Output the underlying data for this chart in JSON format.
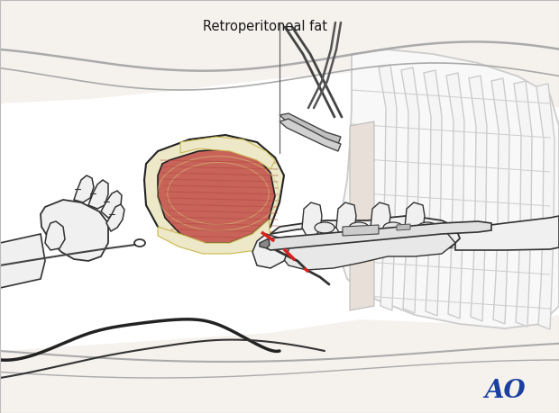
{
  "figure_width": 6.2,
  "figure_height": 4.59,
  "dpi": 100,
  "background_color": "#ffffff",
  "annotation_text": "Retroperitoneal fat",
  "annotation_fontsize": 10.5,
  "annotation_color": "#1a1a1a",
  "ao_text": "AO",
  "ao_color": "#1a3fa0",
  "ao_fontsize": 20,
  "body_line_color": "#aaaaaa",
  "outline_color": "#222222",
  "fat_color": "#ede8c8",
  "muscle_color": "#c8635a",
  "muscle_dark": "#b04840",
  "glove_color": "#f0f0f0",
  "glove_outline": "#333333",
  "instrument_color": "#888888",
  "rib_color": "#cccccc",
  "red_dash": "#dd2020",
  "skin_color": "#f5f2ee"
}
